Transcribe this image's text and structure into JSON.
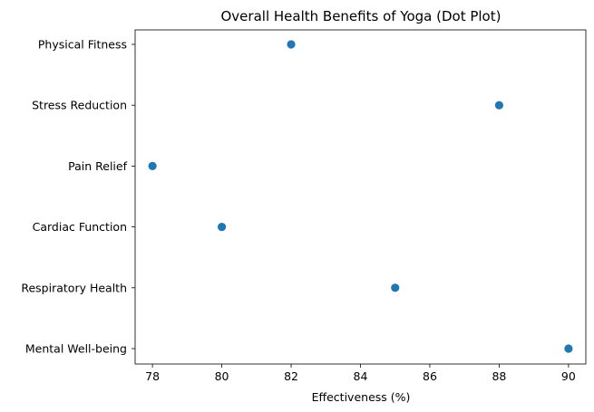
{
  "chart_data": {
    "type": "scatter",
    "title": "Overall Health Benefits of Yoga (Dot Plot)",
    "xlabel": "Effectiveness (%)",
    "ylabel": "",
    "categories": [
      "Physical Fitness",
      "Stress Reduction",
      "Pain Relief",
      "Cardiac Function",
      "Respiratory Health",
      "Mental Well-being"
    ],
    "values": [
      82,
      88,
      78,
      80,
      85,
      90
    ],
    "xlim": [
      77.5,
      90.5
    ],
    "xticks": [
      78,
      80,
      82,
      84,
      86,
      88,
      90
    ],
    "grid": false,
    "marker_color": "#1f77b4"
  }
}
